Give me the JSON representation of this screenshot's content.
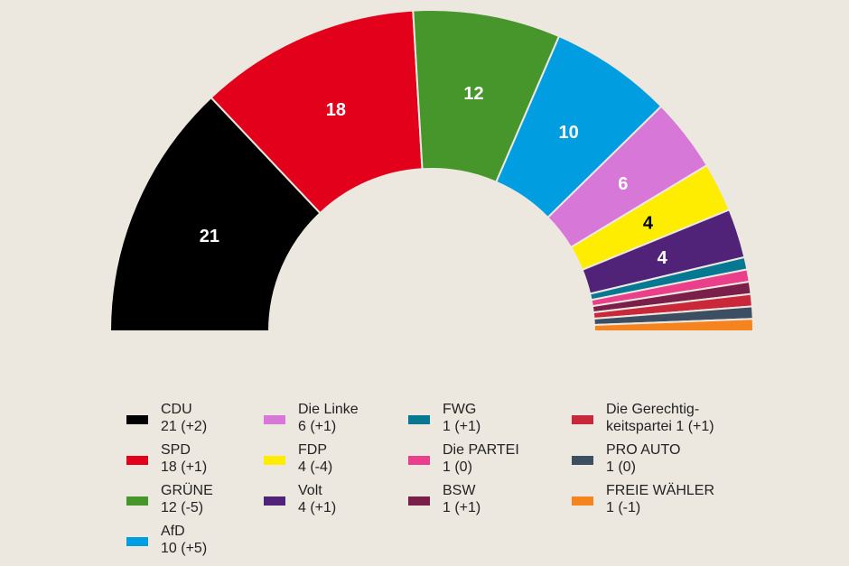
{
  "chart_data": {
    "type": "pie",
    "subtype": "parliament-half-donut",
    "total_seats": 81,
    "parties": [
      {
        "name": "CDU",
        "seats": 21,
        "change": "21 (+2)",
        "color": "#000000",
        "label_color": "#ffffff",
        "show_label": true
      },
      {
        "name": "SPD",
        "seats": 18,
        "change": "18 (+1)",
        "color": "#e2001a",
        "label_color": "#ffffff",
        "show_label": true
      },
      {
        "name": "GRÜNE",
        "seats": 12,
        "change": "12 (-5)",
        "color": "#46962b",
        "label_color": "#ffffff",
        "show_label": true
      },
      {
        "name": "AfD",
        "seats": 10,
        "change": "10 (+5)",
        "color": "#009ee0",
        "label_color": "#ffffff",
        "show_label": true
      },
      {
        "name": "Die Linke",
        "seats": 6,
        "change": "6 (+1)",
        "color": "#d778d9",
        "label_color": "#ffffff",
        "show_label": true
      },
      {
        "name": "FDP",
        "seats": 4,
        "change": "4 (-4)",
        "color": "#ffed00",
        "label_color": "#000000",
        "show_label": true
      },
      {
        "name": "Volt",
        "seats": 4,
        "change": "4 (+1)",
        "color": "#502379",
        "label_color": "#ffffff",
        "show_label": true
      },
      {
        "name": "FWG",
        "seats": 1,
        "change": "1 (+1)",
        "color": "#077891",
        "label_color": "#ffffff",
        "show_label": false
      },
      {
        "name": "Die PARTEI",
        "seats": 1,
        "change": "1 (0)",
        "color": "#ea3f8a",
        "label_color": "#ffffff",
        "show_label": false
      },
      {
        "name": "BSW",
        "seats": 1,
        "change": "1 (+1)",
        "color": "#7a1f4a",
        "label_color": "#ffffff",
        "show_label": false
      },
      {
        "name": "Die Gerechtig-\nkeitspartei",
        "seats": 1,
        "change": "1 (+1)",
        "color": "#c8283a",
        "label_color": "#ffffff",
        "show_label": false
      },
      {
        "name": "PRO AUTO",
        "seats": 1,
        "change": "1 (0)",
        "color": "#3b4e62",
        "label_color": "#ffffff",
        "show_label": false
      },
      {
        "name": "FREIE WÄHLER",
        "seats": 1,
        "change": "1 (-1)",
        "color": "#f5841f",
        "label_color": "#ffffff",
        "show_label": false
      }
    ],
    "legend_position": "bottom"
  }
}
